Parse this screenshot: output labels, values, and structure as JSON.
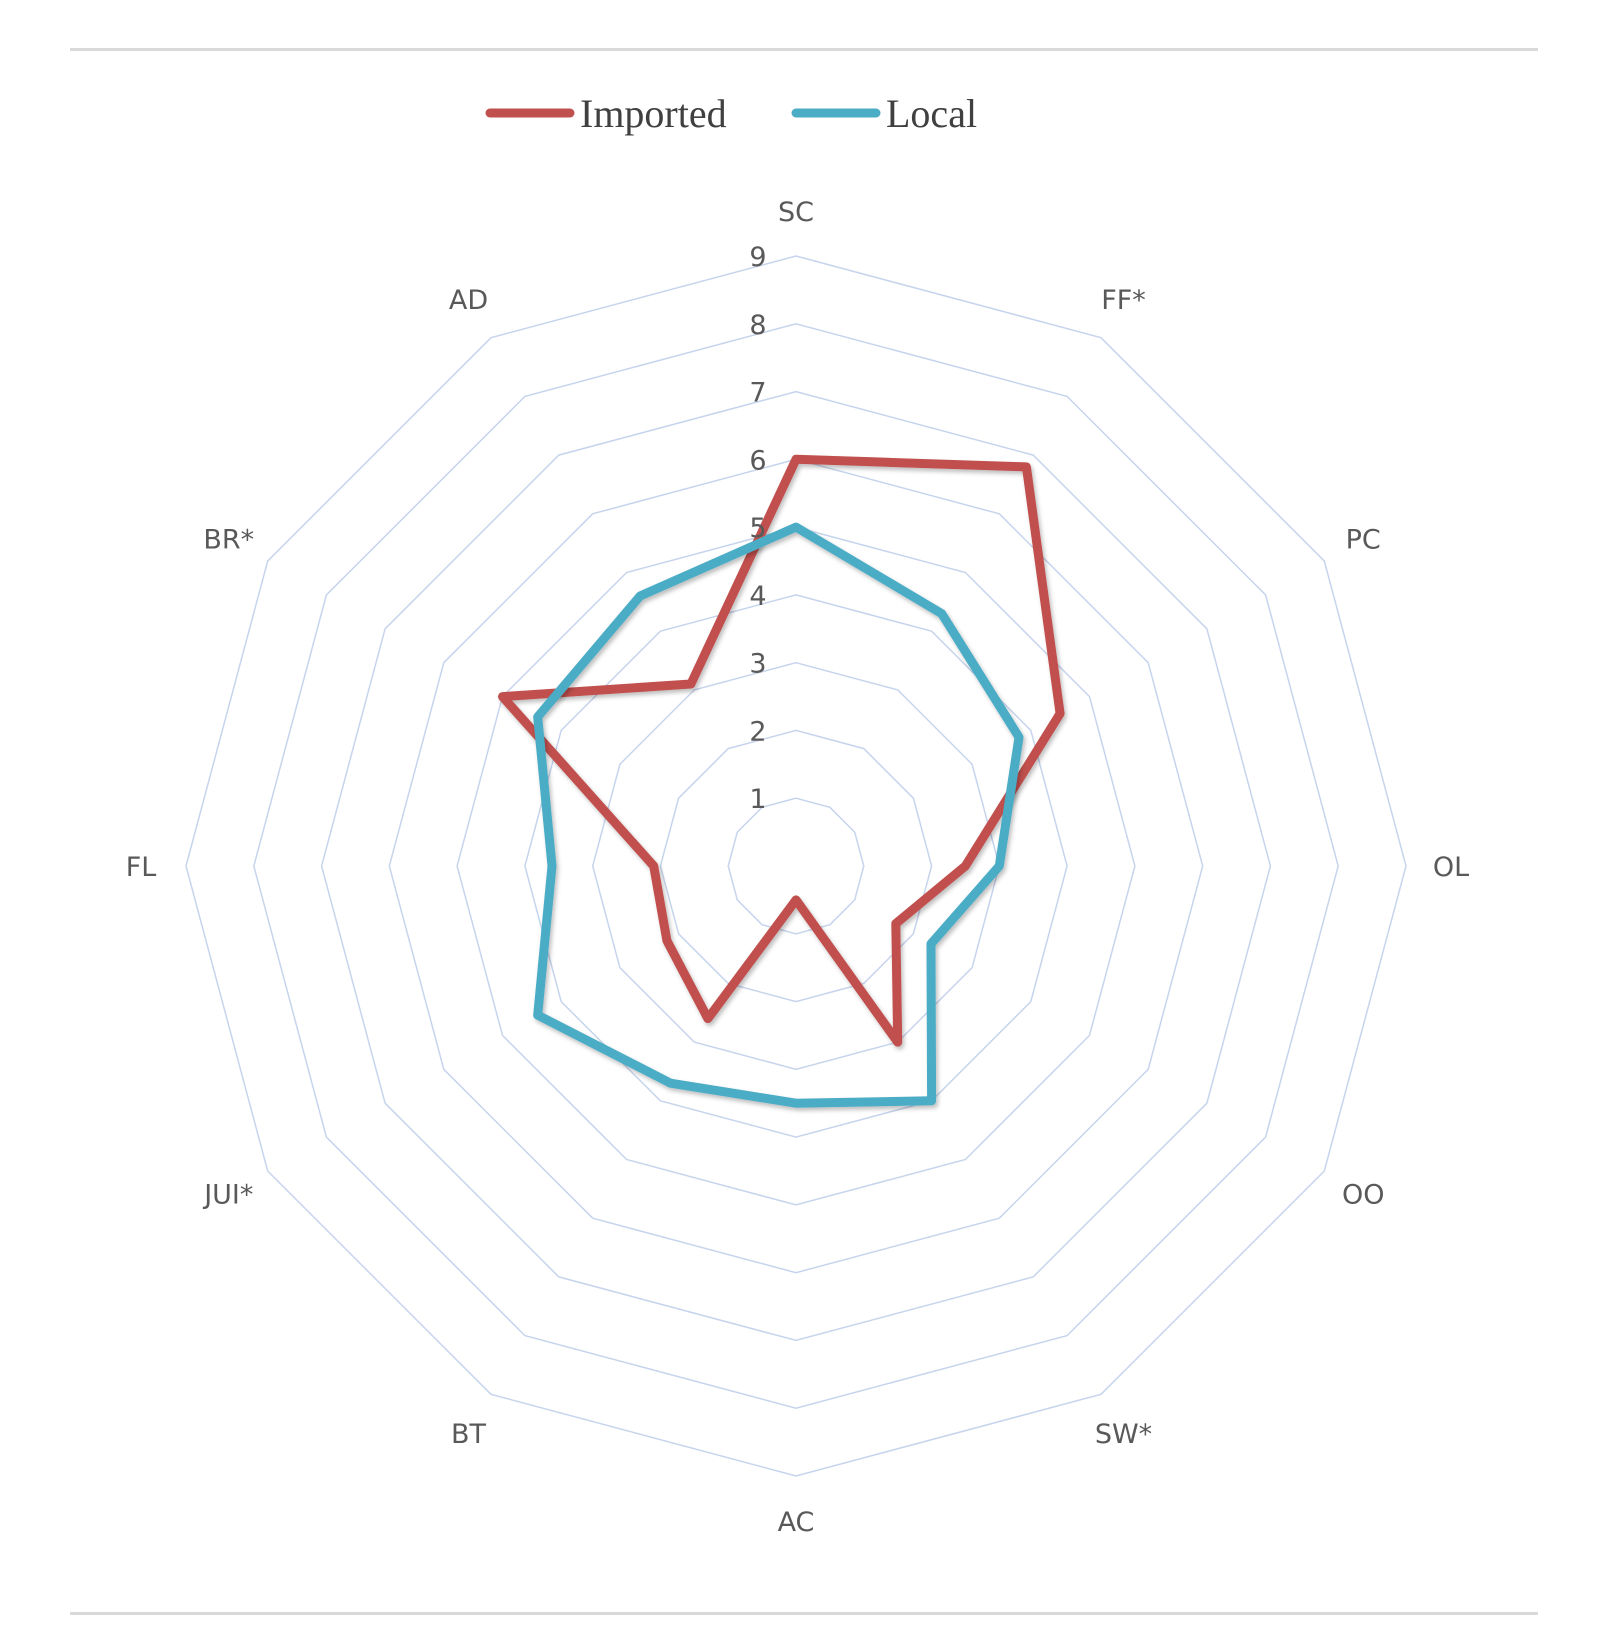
{
  "chart_data": {
    "type": "radar",
    "categories": [
      "SC",
      "FF*",
      "PC",
      "OL",
      "OO",
      "SW*",
      "AC",
      "BT",
      "JUI*",
      "FL",
      "BR*",
      "AD"
    ],
    "r_ticks": [
      "1",
      "2",
      "3",
      "4",
      "5",
      "6",
      "7",
      "8",
      "9"
    ],
    "rlim": [
      0,
      9
    ],
    "series": [
      {
        "name": "Imported",
        "color": "#c0504d",
        "values": [
          6,
          6.8,
          4.5,
          2.5,
          1.7,
          3.0,
          0.5,
          2.6,
          2.2,
          2.1,
          5.0,
          3.1
        ]
      },
      {
        "name": "Local",
        "color": "#4bacc6",
        "values": [
          5,
          4.3,
          3.8,
          3.0,
          2.3,
          4.0,
          3.5,
          3.7,
          4.4,
          3.6,
          4.4,
          4.6
        ]
      }
    ],
    "legend": "top",
    "grid": true
  }
}
